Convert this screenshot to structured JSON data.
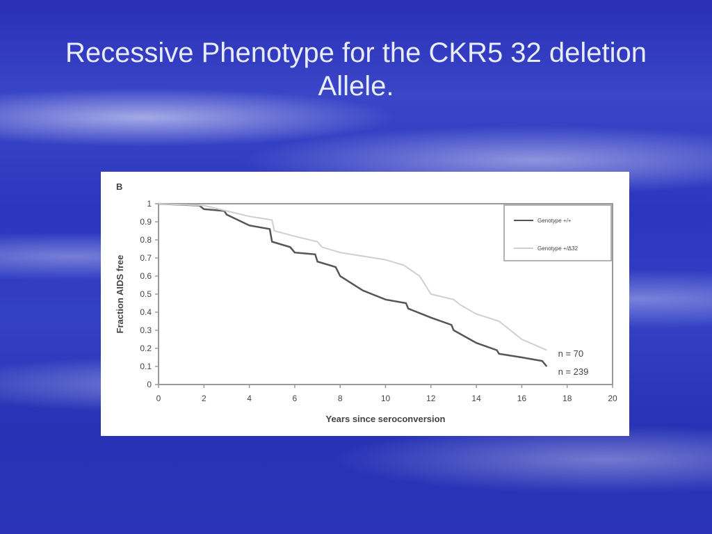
{
  "slide": {
    "title": "Recessive Phenotype for the CKR5 32 deletion Allele."
  },
  "colors": {
    "background": "#2d37bc",
    "title_text": "#e8ecff",
    "series_dark": "#555555",
    "series_light": "#cfcfcf",
    "axes": "#9a9a9a"
  },
  "chart_data": {
    "type": "line",
    "panel_label": "B",
    "xlabel": "Years since seroconversion",
    "ylabel": "Fraction AIDS free",
    "xlim": [
      0,
      20
    ],
    "ylim": [
      0,
      1
    ],
    "x_ticks": [
      0,
      2,
      4,
      6,
      8,
      10,
      12,
      14,
      16,
      18,
      20
    ],
    "y_ticks": [
      0,
      0.1,
      0.2,
      0.3,
      0.4,
      0.5,
      0.6,
      0.7,
      0.8,
      0.9,
      1
    ],
    "y_tick_labels": [
      "0",
      "0.1",
      "0.2",
      "0.3",
      "0.4",
      "0.5",
      "0.6",
      "0.7",
      "0.8",
      "0.9",
      "1"
    ],
    "legend_position": "top-right",
    "grid": false,
    "series": [
      {
        "name": "Genotype +/+",
        "style": "dark",
        "x": [
          0,
          1.8,
          2,
          2.9,
          3,
          4,
          4.9,
          5,
          5.8,
          6,
          6.9,
          7,
          7.8,
          8,
          9,
          10,
          10.9,
          11,
          12,
          12.9,
          13,
          14,
          14.9,
          15,
          16,
          16.9,
          17.1
        ],
        "y": [
          1,
          0.99,
          0.97,
          0.96,
          0.94,
          0.88,
          0.86,
          0.79,
          0.76,
          0.73,
          0.72,
          0.68,
          0.65,
          0.6,
          0.52,
          0.47,
          0.45,
          0.42,
          0.37,
          0.33,
          0.3,
          0.23,
          0.19,
          0.17,
          0.15,
          0.13,
          0.1
        ]
      },
      {
        "name": "Genotype +/Δ32",
        "style": "light",
        "x": [
          0,
          2,
          3,
          4,
          5,
          5.1,
          6,
          7,
          7.2,
          8,
          9,
          10,
          10.8,
          11.5,
          12,
          13,
          13.3,
          14,
          15,
          15.4,
          16,
          17.1
        ],
        "y": [
          1,
          0.99,
          0.96,
          0.93,
          0.91,
          0.85,
          0.82,
          0.79,
          0.76,
          0.73,
          0.71,
          0.69,
          0.66,
          0.6,
          0.5,
          0.47,
          0.44,
          0.39,
          0.35,
          0.31,
          0.25,
          0.19
        ]
      }
    ],
    "annotations": [
      {
        "text": "n = 70",
        "x": 17.6,
        "y": 0.17
      },
      {
        "text": "n = 239",
        "x": 17.6,
        "y": 0.07
      }
    ]
  }
}
